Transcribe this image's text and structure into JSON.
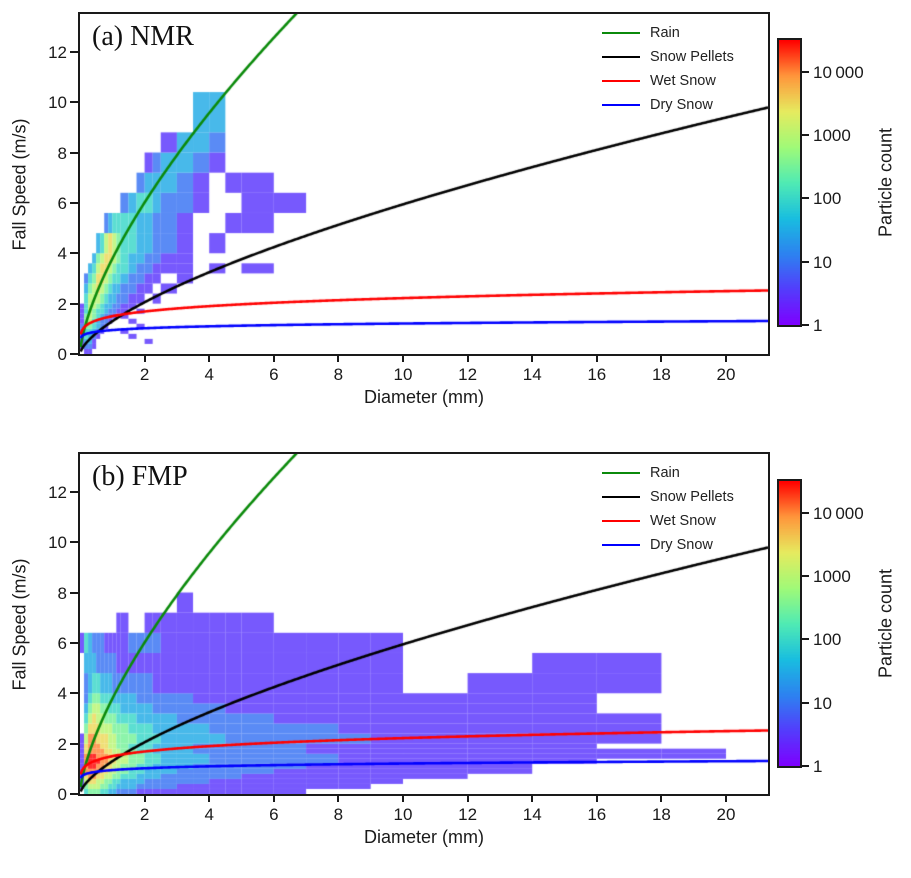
{
  "chart_data": {
    "type": "heatmap",
    "figure_kind": "particle size vs fall speed 2D histograms with fall-velocity relation curves",
    "xlabel": "Diameter (mm)",
    "ylabel": "Fall Speed (m/s)",
    "xlim": [
      0,
      21.3
    ],
    "ylim": [
      0,
      13.5
    ],
    "x_ticks": [
      2,
      4,
      6,
      8,
      10,
      12,
      14,
      16,
      18,
      20
    ],
    "y_ticks": [
      0,
      2,
      4,
      6,
      8,
      10,
      12
    ],
    "grid": false,
    "legend_position": "upper right inside plot",
    "colorbar": {
      "label": "Particle count",
      "scale": "log",
      "range": [
        1,
        31623
      ],
      "ticks": [
        1,
        10,
        100,
        1000,
        10000
      ],
      "tick_labels": [
        "1",
        "10",
        "100",
        "1000",
        "10 000"
      ]
    },
    "colormap_stops": [
      [
        0.0,
        "#7f00ff"
      ],
      [
        0.125,
        "#543cfc"
      ],
      [
        0.25,
        "#2d82f0"
      ],
      [
        0.375,
        "#19bee0"
      ],
      [
        0.5,
        "#50ebb4"
      ],
      [
        0.625,
        "#a0fa78"
      ],
      [
        0.75,
        "#e6eb5f"
      ],
      [
        0.875,
        "#ff963c"
      ],
      [
        1.0,
        "#ff0000"
      ]
    ],
    "curves": [
      {
        "name": "Rain",
        "color": "#0b8a0b",
        "relation": "v = a*D^b",
        "a": 3.78,
        "b": 0.67
      },
      {
        "name": "Snow Pellets",
        "color": "#000000",
        "relation": "v = a*D^b",
        "a": 1.3,
        "b": 0.66
      },
      {
        "name": "Wet Snow",
        "color": "#ff0000",
        "relation": "v = a*D^b",
        "a": 1.5,
        "b": 0.17
      },
      {
        "name": "Dry Snow",
        "color": "#0000ff",
        "relation": "v = a*D^b",
        "a": 0.95,
        "b": 0.105
      }
    ],
    "count_encoding": "each grid digit g maps to particle count ~ 10^(g/2); 0 = empty bin",
    "d_edges": [
      0,
      0.125,
      0.25,
      0.375,
      0.5,
      0.625,
      0.75,
      0.875,
      1.0,
      1.125,
      1.25,
      1.5,
      1.75,
      2.0,
      2.25,
      2.5,
      3.0,
      3.5,
      4.0,
      4.5,
      5.0,
      6.0,
      7.0,
      8.0,
      9.0,
      10.0,
      12.0,
      14.0,
      16.0,
      18.0,
      20.0
    ],
    "v_edges": [
      0,
      0.2,
      0.4,
      0.6,
      0.8,
      1.0,
      1.2,
      1.4,
      1.6,
      1.8,
      2.0,
      2.4,
      2.8,
      3.2,
      3.6,
      4.0,
      4.8,
      5.6,
      6.4,
      7.2,
      8.0,
      8.8,
      10.4
    ],
    "panels": [
      {
        "label": "(a) NMR",
        "rows": [
          "011000000000000000000000000000",
          "122100000000000000000000000000",
          "133100000000010000000000000000",
          "243210000001000000000000000000",
          "244321000010000000000000000000",
          "255432100000100000000000000000",
          "156432210001000000000000000000",
          "156543221010000000000000000000",
          "146544322110100000000000000000",
          "146654332211000000000000000000",
          "046665433221101000000000000000",
          "035676543322110100000000000000",
          "024577654432211010000000000000",
          "003467765443221110101000000000",
          "000356776543322110000000000000",
          "000034676544332210100000000000",
          "000000234444332210011000000000",
          "000000000023443221001100000000",
          "000000000000233321011000000000",
          "000000000000012332100000000000",
          "000000000000000133200000000000",
          "000000000000000003300000000000"
        ]
      },
      {
        "label": "(b) FMP",
        "rows": [
          "045554433222111111111100000000",
          "156665544333222211111111000000",
          "167766554433322222111111100000",
          "178877665544333222221111110000",
          "188887766554433322222111111000",
          "189988776655443332222211111000",
          "189998877665544333222221111100",
          "189988877665544333222221111111",
          "178888776655443332222211111111",
          "178887766554443332222211111100",
          "168877766555444333322222111110",
          "057776665554443333222221111110",
          "046766555444333322222111111110",
          "035665544433332222211111111100",
          "024554443333222221111111111100",
          "023443332222221111111111101110",
          "033322222111111111111111100110",
          "143222111112222111111111100000",
          "000000000110011111111000000000",
          "000000000000000010000000000000",
          "000000000000000000000000000000",
          "000000000000000000000000000000"
        ]
      }
    ]
  }
}
